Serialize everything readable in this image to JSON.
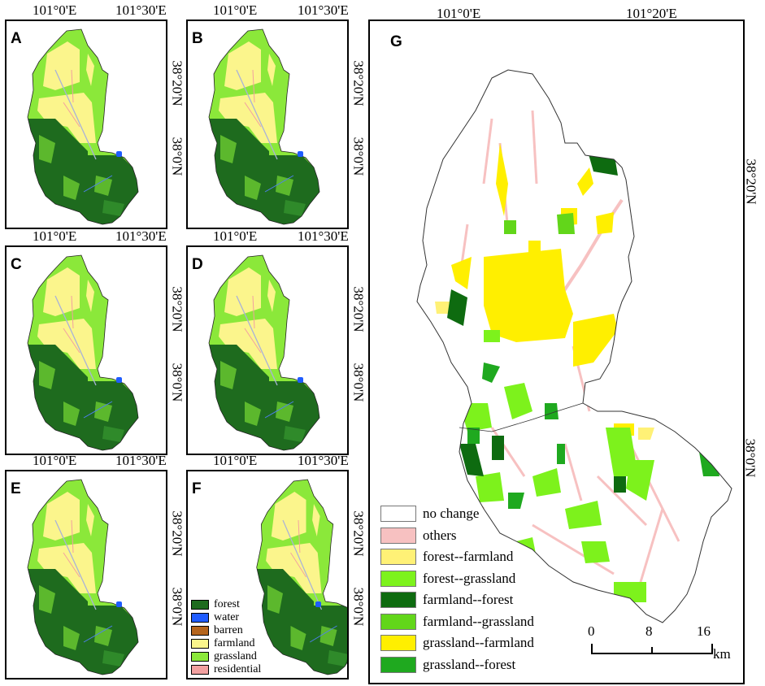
{
  "small_maps": {
    "lon_labels": [
      "101°0'E",
      "101°30'E"
    ],
    "lat_labels": [
      "38°20'N",
      "38°0'N"
    ],
    "panels": [
      {
        "id": "A"
      },
      {
        "id": "B"
      },
      {
        "id": "C"
      },
      {
        "id": "D"
      },
      {
        "id": "E"
      },
      {
        "id": "F"
      }
    ],
    "legend": [
      {
        "label": "forest",
        "color": "#1e6b1e"
      },
      {
        "label": "water",
        "color": "#1f5cff"
      },
      {
        "label": "barren",
        "color": "#b5651d"
      },
      {
        "label": "farmland",
        "color": "#fbf58c"
      },
      {
        "label": "grassland",
        "color": "#8be83a"
      },
      {
        "label": "residential",
        "color": "#f2a0a0"
      }
    ]
  },
  "change_map": {
    "id": "G",
    "lon_labels": [
      "101°0'E",
      "101°20'E"
    ],
    "lat_labels": [
      "38°20'N",
      "38°0'N"
    ],
    "legend": [
      {
        "label": "no change",
        "color": "#ffffff"
      },
      {
        "label": "others",
        "color": "#f7c1c1"
      },
      {
        "label": "forest--farmland",
        "color": "#fff176"
      },
      {
        "label": "forest--grassland",
        "color": "#7df21c"
      },
      {
        "label": "farmland--forest",
        "color": "#0e6b10"
      },
      {
        "label": "farmland--grassland",
        "color": "#62d61a"
      },
      {
        "label": "grassland--farmland",
        "color": "#ffef00"
      },
      {
        "label": "grassland--forest",
        "color": "#1fa91f"
      }
    ],
    "scale_bar": {
      "ticks": [
        "0",
        "8",
        "16"
      ],
      "unit": "km"
    }
  }
}
